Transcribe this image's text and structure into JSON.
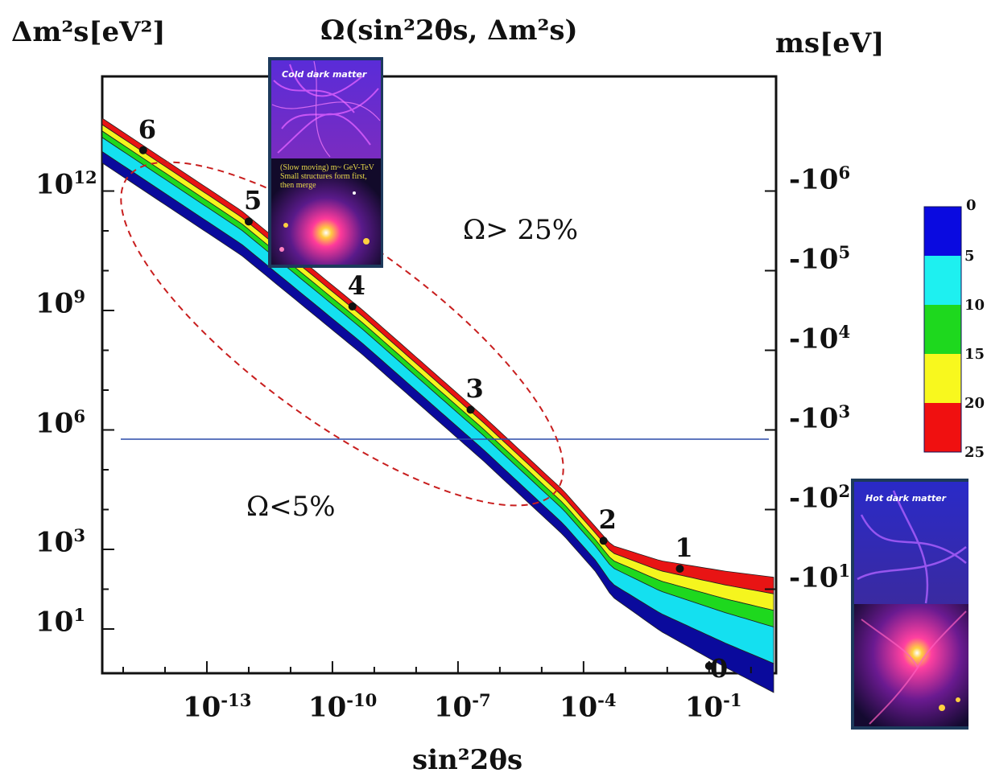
{
  "chart_data": {
    "type": "heatmap",
    "title": "Ω(sin²2θs, Δm²s)",
    "xlabel": "sin²2θs",
    "ylabel_left": "Δm²s[eV²]",
    "ylabel_right": "ms[eV]",
    "x_scale": "log",
    "y_scale": "log",
    "x_ticks": [
      {
        "base": "10",
        "exp": "-13",
        "value": 1e-13
      },
      {
        "base": "10",
        "exp": "-10",
        "value": 1e-10
      },
      {
        "base": "10",
        "exp": "-7",
        "value": 1e-07
      },
      {
        "base": "10",
        "exp": "-4",
        "value": 0.0001
      },
      {
        "base": "10",
        "exp": "-1",
        "value": 0.1
      }
    ],
    "y_ticks_left": [
      {
        "base": "10",
        "exp": "1",
        "value": 10
      },
      {
        "base": "10",
        "exp": "3",
        "value": 1000
      },
      {
        "base": "10",
        "exp": "6",
        "value": 1000000.0
      },
      {
        "base": "10",
        "exp": "9",
        "value": 1000000000.0
      },
      {
        "base": "10",
        "exp": "12",
        "value": 1000000000000.0
      }
    ],
    "y_ticks_right": [
      {
        "base": "10",
        "exp": "1",
        "value": 10
      },
      {
        "base": "10",
        "exp": "2",
        "value": 100
      },
      {
        "base": "10",
        "exp": "3",
        "value": 1000
      },
      {
        "base": "10",
        "exp": "4",
        "value": 10000
      },
      {
        "base": "10",
        "exp": "5",
        "value": 100000
      },
      {
        "base": "10",
        "exp": "6",
        "value": 1000000
      }
    ],
    "band_colors": [
      "#0a0a9c",
      "#14e0f0",
      "#1ed81e",
      "#f5f51e",
      "#e81414"
    ],
    "colorbar": {
      "labels": [
        "0",
        "5",
        "10",
        "15",
        "20",
        "25"
      ],
      "colors": [
        "#0a0ae0",
        "#1ef0f0",
        "#1ed81e",
        "#f8f81e",
        "#f01010"
      ]
    },
    "points": [
      {
        "label": "6",
        "x": 3e-15,
        "y": 2500000000000.0
      },
      {
        "label": "5",
        "x": 1e-12,
        "y": 10000000000.0
      },
      {
        "label": "4",
        "x": 3e-10,
        "y": 70000000.0
      },
      {
        "label": "3",
        "x": 2e-07,
        "y": 80000.0
      },
      {
        "label": "2",
        "x": 0.0003,
        "y": 500
      },
      {
        "label": "1",
        "x": 0.02,
        "y": 300
      },
      {
        "label": "0",
        "x": 0.1,
        "y": 10
      }
    ],
    "annotations": [
      "Ω> 25%",
      "Ω<5%"
    ],
    "horizontal_line_y": 200000.0
  },
  "insets": {
    "cold": {
      "caption": "Cold dark matter",
      "note": "(Slow moving) m~ GeV-TeV  Small structures form first, then merge"
    },
    "hot": {
      "caption": "Hot dark matter"
    }
  }
}
